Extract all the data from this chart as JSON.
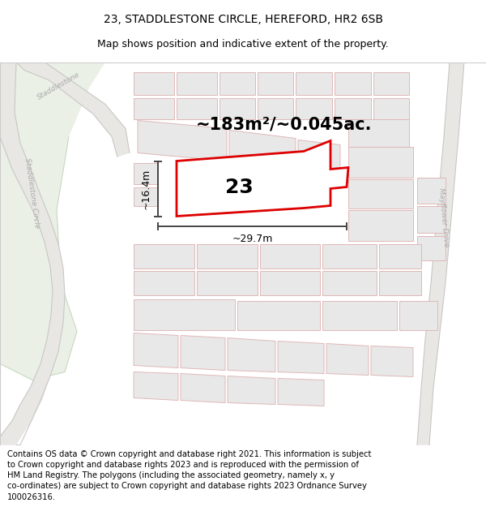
{
  "title_line1": "23, STADDLESTONE CIRCLE, HEREFORD, HR2 6SB",
  "title_line2": "Map shows position and indicative extent of the property.",
  "footer_text": "Contains OS data © Crown copyright and database right 2021. This information is subject\nto Crown copyright and database rights 2023 and is reproduced with the permission of\nHM Land Registry. The polygons (including the associated geometry, namely x, y\nco-ordinates) are subject to Crown copyright and database rights 2023 Ordnance Survey\n100026316.",
  "area_text": "~183m²/~0.045ac.",
  "label_number": "23",
  "dim_width": "~29.7m",
  "dim_height": "~16.4m",
  "map_bg": "#f7f6f4",
  "white_bg": "#ffffff",
  "road_fill": "#e8e7e4",
  "road_edge": "#c8c7c4",
  "green_color": "#eaf0e6",
  "block_fill": "#e8e8e8",
  "block_edge": "#e0b8b8",
  "plot_color": "#dd0000",
  "dim_color": "#444444",
  "road_label_color": "#aaaaaa",
  "title_fs": 10,
  "subtitle_fs": 9,
  "footer_fs": 7.2,
  "area_fs": 15,
  "number_fs": 18,
  "dim_fs": 9
}
